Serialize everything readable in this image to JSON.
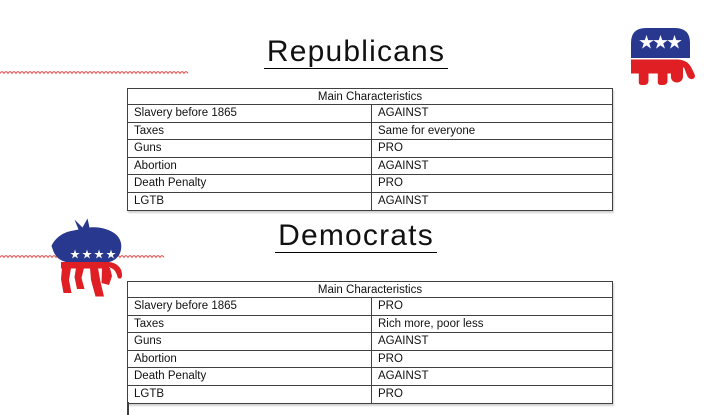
{
  "sections": [
    {
      "title": "Republicans",
      "logo": "republican-elephant",
      "table": {
        "header": "Main Characteristics",
        "rows": [
          {
            "label": "Slavery before 1865",
            "value": "AGAINST"
          },
          {
            "label": "Taxes",
            "value": "Same for everyone"
          },
          {
            "label": "Guns",
            "value": "PRO"
          },
          {
            "label": "Abortion",
            "value": "AGAINST"
          },
          {
            "label": "Death Penalty",
            "value": "PRO"
          },
          {
            "label": "LGTB",
            "value": "AGAINST"
          }
        ]
      }
    },
    {
      "title": "Democrats",
      "logo": "democrat-donkey",
      "table": {
        "header": "Main Characteristics",
        "rows": [
          {
            "label": "Slavery before 1865",
            "value": "PRO"
          },
          {
            "label": "Taxes",
            "value": "Rich more, poor less"
          },
          {
            "label": "Guns",
            "value": "AGAINST"
          },
          {
            "label": "Abortion",
            "value": "PRO"
          },
          {
            "label": "Death Penalty",
            "value": "AGAINST"
          },
          {
            "label": "LGTB",
            "value": "PRO"
          }
        ]
      }
    }
  ],
  "colors": {
    "background": "#ffffff",
    "text": "#111111",
    "table_border": "#404040",
    "title_underline": "#000000",
    "spellcheck_squiggle": "#e85c5c",
    "logo_blue": "#28388f",
    "logo_red": "#df1f24",
    "logo_star": "#ffffff"
  }
}
